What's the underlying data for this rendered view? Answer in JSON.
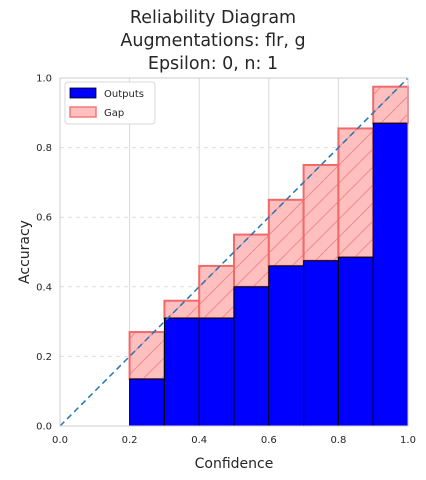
{
  "chart_data": {
    "type": "bar",
    "title_lines": [
      "Reliability Diagram",
      "Augmentations: flr, g",
      "Epsilon: 0, n: 1"
    ],
    "xlabel": "Confidence",
    "ylabel": "Accuracy",
    "xlim": [
      0,
      1
    ],
    "ylim": [
      0,
      1
    ],
    "xticks": [
      "0.0",
      "0.2",
      "0.4",
      "0.6",
      "0.8",
      "1.0"
    ],
    "yticks": [
      "0.0",
      "0.2",
      "0.4",
      "0.6",
      "0.8",
      "1.0"
    ],
    "grid": true,
    "legend_position": "top-left",
    "bin_edges": [
      0.0,
      0.1,
      0.2,
      0.3,
      0.4,
      0.5,
      0.6,
      0.7,
      0.8,
      0.9,
      1.0
    ],
    "series": [
      {
        "name": "Outputs",
        "color": "#0000ff",
        "values": [
          0.0,
          0.0,
          0.135,
          0.31,
          0.31,
          0.4,
          0.46,
          0.475,
          0.485,
          0.87
        ]
      },
      {
        "name": "Gap",
        "color": "#ff7f7f",
        "bottom": [
          0.0,
          0.0,
          0.135,
          0.31,
          0.31,
          0.4,
          0.46,
          0.475,
          0.485,
          0.87
        ],
        "top": [
          0.0,
          0.0,
          0.27,
          0.36,
          0.46,
          0.55,
          0.65,
          0.75,
          0.855,
          0.975
        ]
      }
    ],
    "reference_line": {
      "from": [
        0,
        0
      ],
      "to": [
        1,
        1
      ],
      "style": "dashed",
      "color": "#1f77b4"
    }
  }
}
